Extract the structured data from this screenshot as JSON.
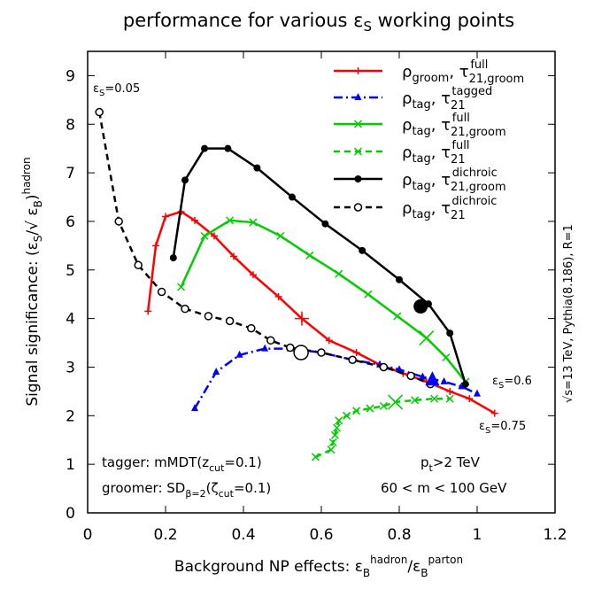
{
  "chart_data": {
    "type": "line",
    "title": "performance for various εS working points",
    "xlabel": "Background NP effects: εB(hadron)/εB(parton)",
    "ylabel": "Signal significance: (εS/√ εB)(hadron)",
    "xlim": [
      0,
      1.2
    ],
    "ylim": [
      0,
      9.5
    ],
    "xticks": [
      0,
      0.2,
      0.4,
      0.6,
      0.8,
      1,
      1.2
    ],
    "xtick_labels": [
      "0",
      "0.2",
      "0.4",
      "0.6",
      "0.8",
      "1",
      "1.2"
    ],
    "yticks": [
      0,
      1,
      2,
      3,
      4,
      5,
      6,
      7,
      8,
      9
    ],
    "ytick_labels": [
      "0",
      "1",
      "2",
      "3",
      "4",
      "5",
      "6",
      "7",
      "8",
      "9"
    ],
    "series": [
      {
        "name": "ρgroom, τ(full) 21,groom",
        "color": "#ff0000",
        "dash": "solid",
        "marker": "plus",
        "x": [
          0.155,
          0.175,
          0.2,
          0.24,
          0.275,
          0.325,
          0.375,
          0.425,
          0.49,
          0.55,
          0.62,
          0.69,
          0.75,
          0.81,
          0.87,
          0.93,
          0.98,
          1.045
        ],
        "y": [
          4.15,
          5.5,
          6.1,
          6.2,
          6.02,
          5.7,
          5.28,
          4.9,
          4.45,
          4.0,
          3.55,
          3.3,
          3.05,
          2.87,
          2.7,
          2.5,
          2.35,
          2.05
        ],
        "highlight": {
          "x": 0.55,
          "y": 4.0,
          "label": ""
        }
      },
      {
        "name": "ρtag, τ(tagged) 21",
        "color": "#0000ff",
        "dash": "dashdot",
        "marker": "triangle",
        "x": [
          0.275,
          0.33,
          0.39,
          0.455,
          0.52,
          0.6,
          0.68,
          0.75,
          0.8,
          0.86,
          0.915,
          0.96,
          1.0
        ],
        "y": [
          2.15,
          2.9,
          3.25,
          3.38,
          3.38,
          3.3,
          3.15,
          3.05,
          2.95,
          2.8,
          2.7,
          2.6,
          2.45
        ],
        "highlight": {
          "x": 0.885,
          "y": 2.75,
          "label": ""
        }
      },
      {
        "name": "ρtag, τ(full) 21,groom",
        "color": "#00cc00",
        "dash": "solid",
        "marker": "x",
        "x": [
          0.24,
          0.3,
          0.365,
          0.425,
          0.495,
          0.57,
          0.645,
          0.72,
          0.795,
          0.87,
          0.92,
          0.97
        ],
        "y": [
          4.65,
          5.7,
          6.02,
          5.98,
          5.7,
          5.3,
          4.92,
          4.5,
          4.05,
          3.6,
          3.2,
          2.7
        ],
        "highlight": {
          "x": 0.87,
          "y": 3.6,
          "label": ""
        }
      },
      {
        "name": "ρtag, τ(full) 21",
        "color": "#00cc00",
        "dash": "dashed",
        "marker": "x",
        "x": [
          0.585,
          0.625,
          0.63,
          0.635,
          0.64,
          0.645,
          0.665,
          0.69,
          0.725,
          0.76,
          0.79,
          0.84,
          0.89,
          0.93
        ],
        "y": [
          1.15,
          1.3,
          1.45,
          1.6,
          1.75,
          1.9,
          2.0,
          2.1,
          2.15,
          2.2,
          2.28,
          2.32,
          2.35,
          2.35
        ],
        "highlight": {
          "x": 0.79,
          "y": 2.28,
          "label": ""
        }
      },
      {
        "name": "ρtag, τ(dichroic) 21,groom",
        "color": "#000000",
        "dash": "solid",
        "marker": "filled-circle",
        "x": [
          0.22,
          0.25,
          0.3,
          0.36,
          0.435,
          0.525,
          0.61,
          0.705,
          0.8,
          0.875,
          0.93,
          0.97
        ],
        "y": [
          5.25,
          6.85,
          7.5,
          7.5,
          7.1,
          6.5,
          5.95,
          5.4,
          4.8,
          4.3,
          3.7,
          2.65
        ],
        "highlight": {
          "x": 0.855,
          "y": 4.25,
          "label": ""
        }
      },
      {
        "name": "ρtag, τ(dichroic) 21",
        "color": "#000000",
        "dash": "dashed",
        "marker": "open-circle",
        "x": [
          0.03,
          0.08,
          0.13,
          0.19,
          0.25,
          0.31,
          0.365,
          0.42,
          0.47,
          0.52,
          0.6,
          0.68,
          0.76,
          0.83,
          0.88
        ],
        "y": [
          8.25,
          6.0,
          5.1,
          4.55,
          4.2,
          4.05,
          3.95,
          3.8,
          3.55,
          3.4,
          3.3,
          3.15,
          3.0,
          2.82,
          2.65
        ],
        "highlight": {
          "x": 0.548,
          "y": 3.3,
          "label": ""
        }
      }
    ],
    "legend_entries": [
      {
        "main": "ρgroom, τ",
        "sup": "full",
        "sub": "21,groom"
      },
      {
        "main": "ρtag, τ",
        "sup": "tagged",
        "sub": "21"
      },
      {
        "main": "ρtag, τ",
        "sup": "full",
        "sub": "21,groom"
      },
      {
        "main": "ρtag, τ",
        "sup": "full",
        "sub": "21"
      },
      {
        "main": "ρtag, τ",
        "sup": "dichroic",
        "sub": "21,groom"
      },
      {
        "main": "ρtag, τ",
        "sup": "dichroic",
        "sub": "21"
      }
    ],
    "annotations": {
      "eps_005": "εS=0.05",
      "eps_06": "εS=0.6",
      "eps_075": "εS=0.75",
      "tagger": "tagger: mMDT(zcut=0.1)",
      "groomer": "groomer: SDβ=2(ζcut=0.1)",
      "pt_cut": "pt>2 TeV",
      "mass_window": "60 < m < 100 GeV",
      "side_label": "√s=13 TeV, Pythia(8.186), R=1"
    },
    "legend_position": "top-right",
    "grid": false
  }
}
